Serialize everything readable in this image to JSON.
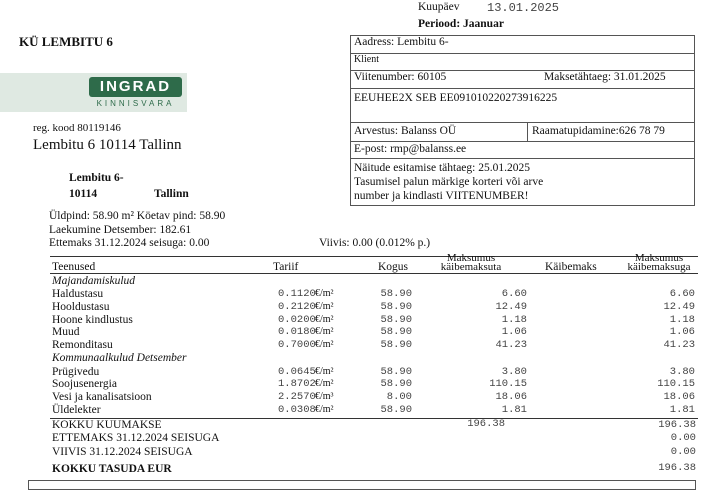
{
  "header": {
    "kuupaev_label": "Kuupäev",
    "kuupaev": "13.01.2025",
    "periood": "Periood:  Jaanuar",
    "association": "KÜ LEMBITU 6",
    "reg_kood": "reg. kood 80119146",
    "address": "Lembitu 6    10114 Tallinn"
  },
  "logo": {
    "name": "INGRAD",
    "sub": "KINNISVARA",
    "color": "#2e6b4a"
  },
  "recipient": {
    "street": "Lembitu 6-",
    "zip": "10114",
    "city": "Tallinn"
  },
  "info": {
    "aadress": "Aadress:  Lembitu 6-",
    "klient": "Klient",
    "viitenumber": "Viitenumber: 60105",
    "maksetahtaeg": "Maksetähtaeg: 31.01.2025",
    "bank": "EEUHEE2X SEB EE091010220273916225",
    "arvestus": "Arvestus: Balanss OÜ",
    "raamatupidamine": "Raamatupidamine:626 78 79",
    "epost": "E-post: rmp@balanss.ee",
    "note1": "Näitude esitamise tähtaeg: 25.01.2025",
    "note2": "Tasumisel palun märkige korteri või arve",
    "note3": "number ja kindlasti VIITENUMBER!"
  },
  "summary": {
    "uldpind": "Üldpind:    58.90 m²  Köetav pind:    58.90",
    "laekumine": "Laekumine Detsember: 182.61",
    "ettemaks": "Ettemaks   31.12.2024 seisuga: 0.00",
    "viivis": "Viivis: 0.00   (0.012% p.)"
  },
  "table": {
    "headers": [
      "Teenused",
      "Tariif",
      "Kogus",
      "Maksumus käibemaksuta",
      "Käibemaks",
      "Maksumus käibemaksuga"
    ],
    "sections": [
      "Majandamiskulud",
      "Kommunaalkulud Detsember"
    ],
    "rows": [
      {
        "name": "Haldustasu",
        "tariff": "0.1120",
        "unit": "€/m²",
        "qty": "58.90",
        "net": "6.60",
        "total": "6.60"
      },
      {
        "name": "Hooldustasu",
        "tariff": "0.2120",
        "unit": "€/m²",
        "qty": "58.90",
        "net": "12.49",
        "total": "12.49"
      },
      {
        "name": "Hoone kindlustus",
        "tariff": "0.0200",
        "unit": "€/m²",
        "qty": "58.90",
        "net": "1.18",
        "total": "1.18"
      },
      {
        "name": "Muud",
        "tariff": "0.0180",
        "unit": "€/m²",
        "qty": "58.90",
        "net": "1.06",
        "total": "1.06"
      },
      {
        "name": "Remonditasu",
        "tariff": "0.7000",
        "unit": "€/m²",
        "qty": "58.90",
        "net": "41.23",
        "total": "41.23"
      },
      {
        "name": "Prügivedu",
        "tariff": "0.0645",
        "unit": "€/m²",
        "qty": "58.90",
        "net": "3.80",
        "total": "3.80"
      },
      {
        "name": "Soojusenergia",
        "tariff": "1.8702",
        "unit": "€/m²",
        "qty": "58.90",
        "net": "110.15",
        "total": "110.15"
      },
      {
        "name": "Vesi ja kanalisatsioon",
        "tariff": "2.2570",
        "unit": "€/m³",
        "qty": "8.00",
        "net": "18.06",
        "total": "18.06"
      },
      {
        "name": "Üldelekter",
        "tariff": "0.0308",
        "unit": "€/m²",
        "qty": "58.90",
        "net": "1.81",
        "total": "1.81"
      }
    ],
    "totals": {
      "kuumakse_label": "KOKKU KUUMAKSE",
      "kuumakse_net": "196.38",
      "kuumakse_total": "196.38",
      "ettemaks_label": "ETTEMAKS  31.12.2024  SEISUGA",
      "ettemaks": "0.00",
      "viivis_label": "VIIVIS  31.12.2024  SEISUGA",
      "viivis": "0.00",
      "tasuda_label": "KOKKU TASUDA  EUR",
      "tasuda": "196.38"
    }
  }
}
